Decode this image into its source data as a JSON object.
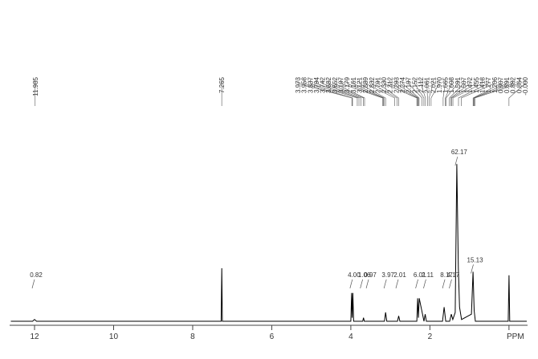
{
  "chart_data": {
    "type": "nmr",
    "xlim": [
      12.63,
      -0.47
    ],
    "xticks": [
      12,
      10,
      8,
      6,
      4,
      2,
      {
        "value": 0,
        "label": "PPM"
      }
    ],
    "color": "#000000",
    "x": [
      12.6,
      12.05,
      12.0,
      11.95,
      7.28,
      7.265,
      7.25,
      4.0,
      3.98,
      3.965,
      3.95,
      3.93,
      3.7,
      3.68,
      3.66,
      3.15,
      3.12,
      3.09,
      2.82,
      2.79,
      2.76,
      2.33,
      2.31,
      2.29,
      2.27,
      2.15,
      2.12,
      2.09,
      1.68,
      1.64,
      1.6,
      1.5,
      1.46,
      1.42,
      1.36,
      1.32,
      1.28,
      1.25,
      1.2,
      0.95,
      0.91,
      0.88,
      0.85,
      0.02,
      0.0,
      -0.02,
      -0.45
    ],
    "values": [
      0,
      0,
      1,
      0,
      0,
      30,
      0,
      0,
      16,
      2,
      16,
      0,
      0,
      2,
      0,
      0,
      5,
      0,
      0,
      3,
      0,
      0,
      13,
      2,
      13,
      0,
      4,
      0,
      0,
      8,
      0,
      0,
      4,
      1,
      5,
      89,
      30,
      8,
      1,
      4,
      28,
      6,
      0,
      0,
      26,
      0,
      0
    ],
    "ylim": [
      0,
      100
    ],
    "peak_labels": [
      "11.985",
      "7.265",
      "3.973",
      "3.958",
      "3.837",
      "3.794",
      "3.742",
      "3.682",
      "3.652",
      "3.197",
      "3.179",
      "3.161",
      "3.121",
      "2.889",
      "2.832",
      "2.791",
      "2.330",
      "2.312",
      "2.293",
      "2.274",
      "2.197",
      "2.152",
      "2.112",
      "2.061",
      "2.021",
      "1.970",
      "1.665",
      "1.608",
      "1.591",
      "1.507",
      "1.472",
      "1.455",
      "1.418",
      "1.277",
      "1.206",
      "0.907",
      "0.891",
      "0.882",
      "0.864",
      "-0.000"
    ],
    "integrals": {
      "x": [
        12.0,
        3.96,
        3.7,
        3.55,
        3.1,
        2.8,
        2.3,
        2.1,
        1.62,
        1.45,
        1.3,
        0.9
      ],
      "values": [
        0.82,
        4.0,
        1.06,
        0.97,
        3.97,
        2.01,
        6.01,
        2.11,
        8.17,
        4.17,
        62.17,
        15.13
      ],
      "value_labels": [
        "0.82",
        "4.00",
        "1.06",
        "0.97",
        "3.97",
        "2.01",
        "6.01",
        "2.11",
        "8.17",
        "4.17",
        "62.17",
        "15.13"
      ]
    }
  }
}
